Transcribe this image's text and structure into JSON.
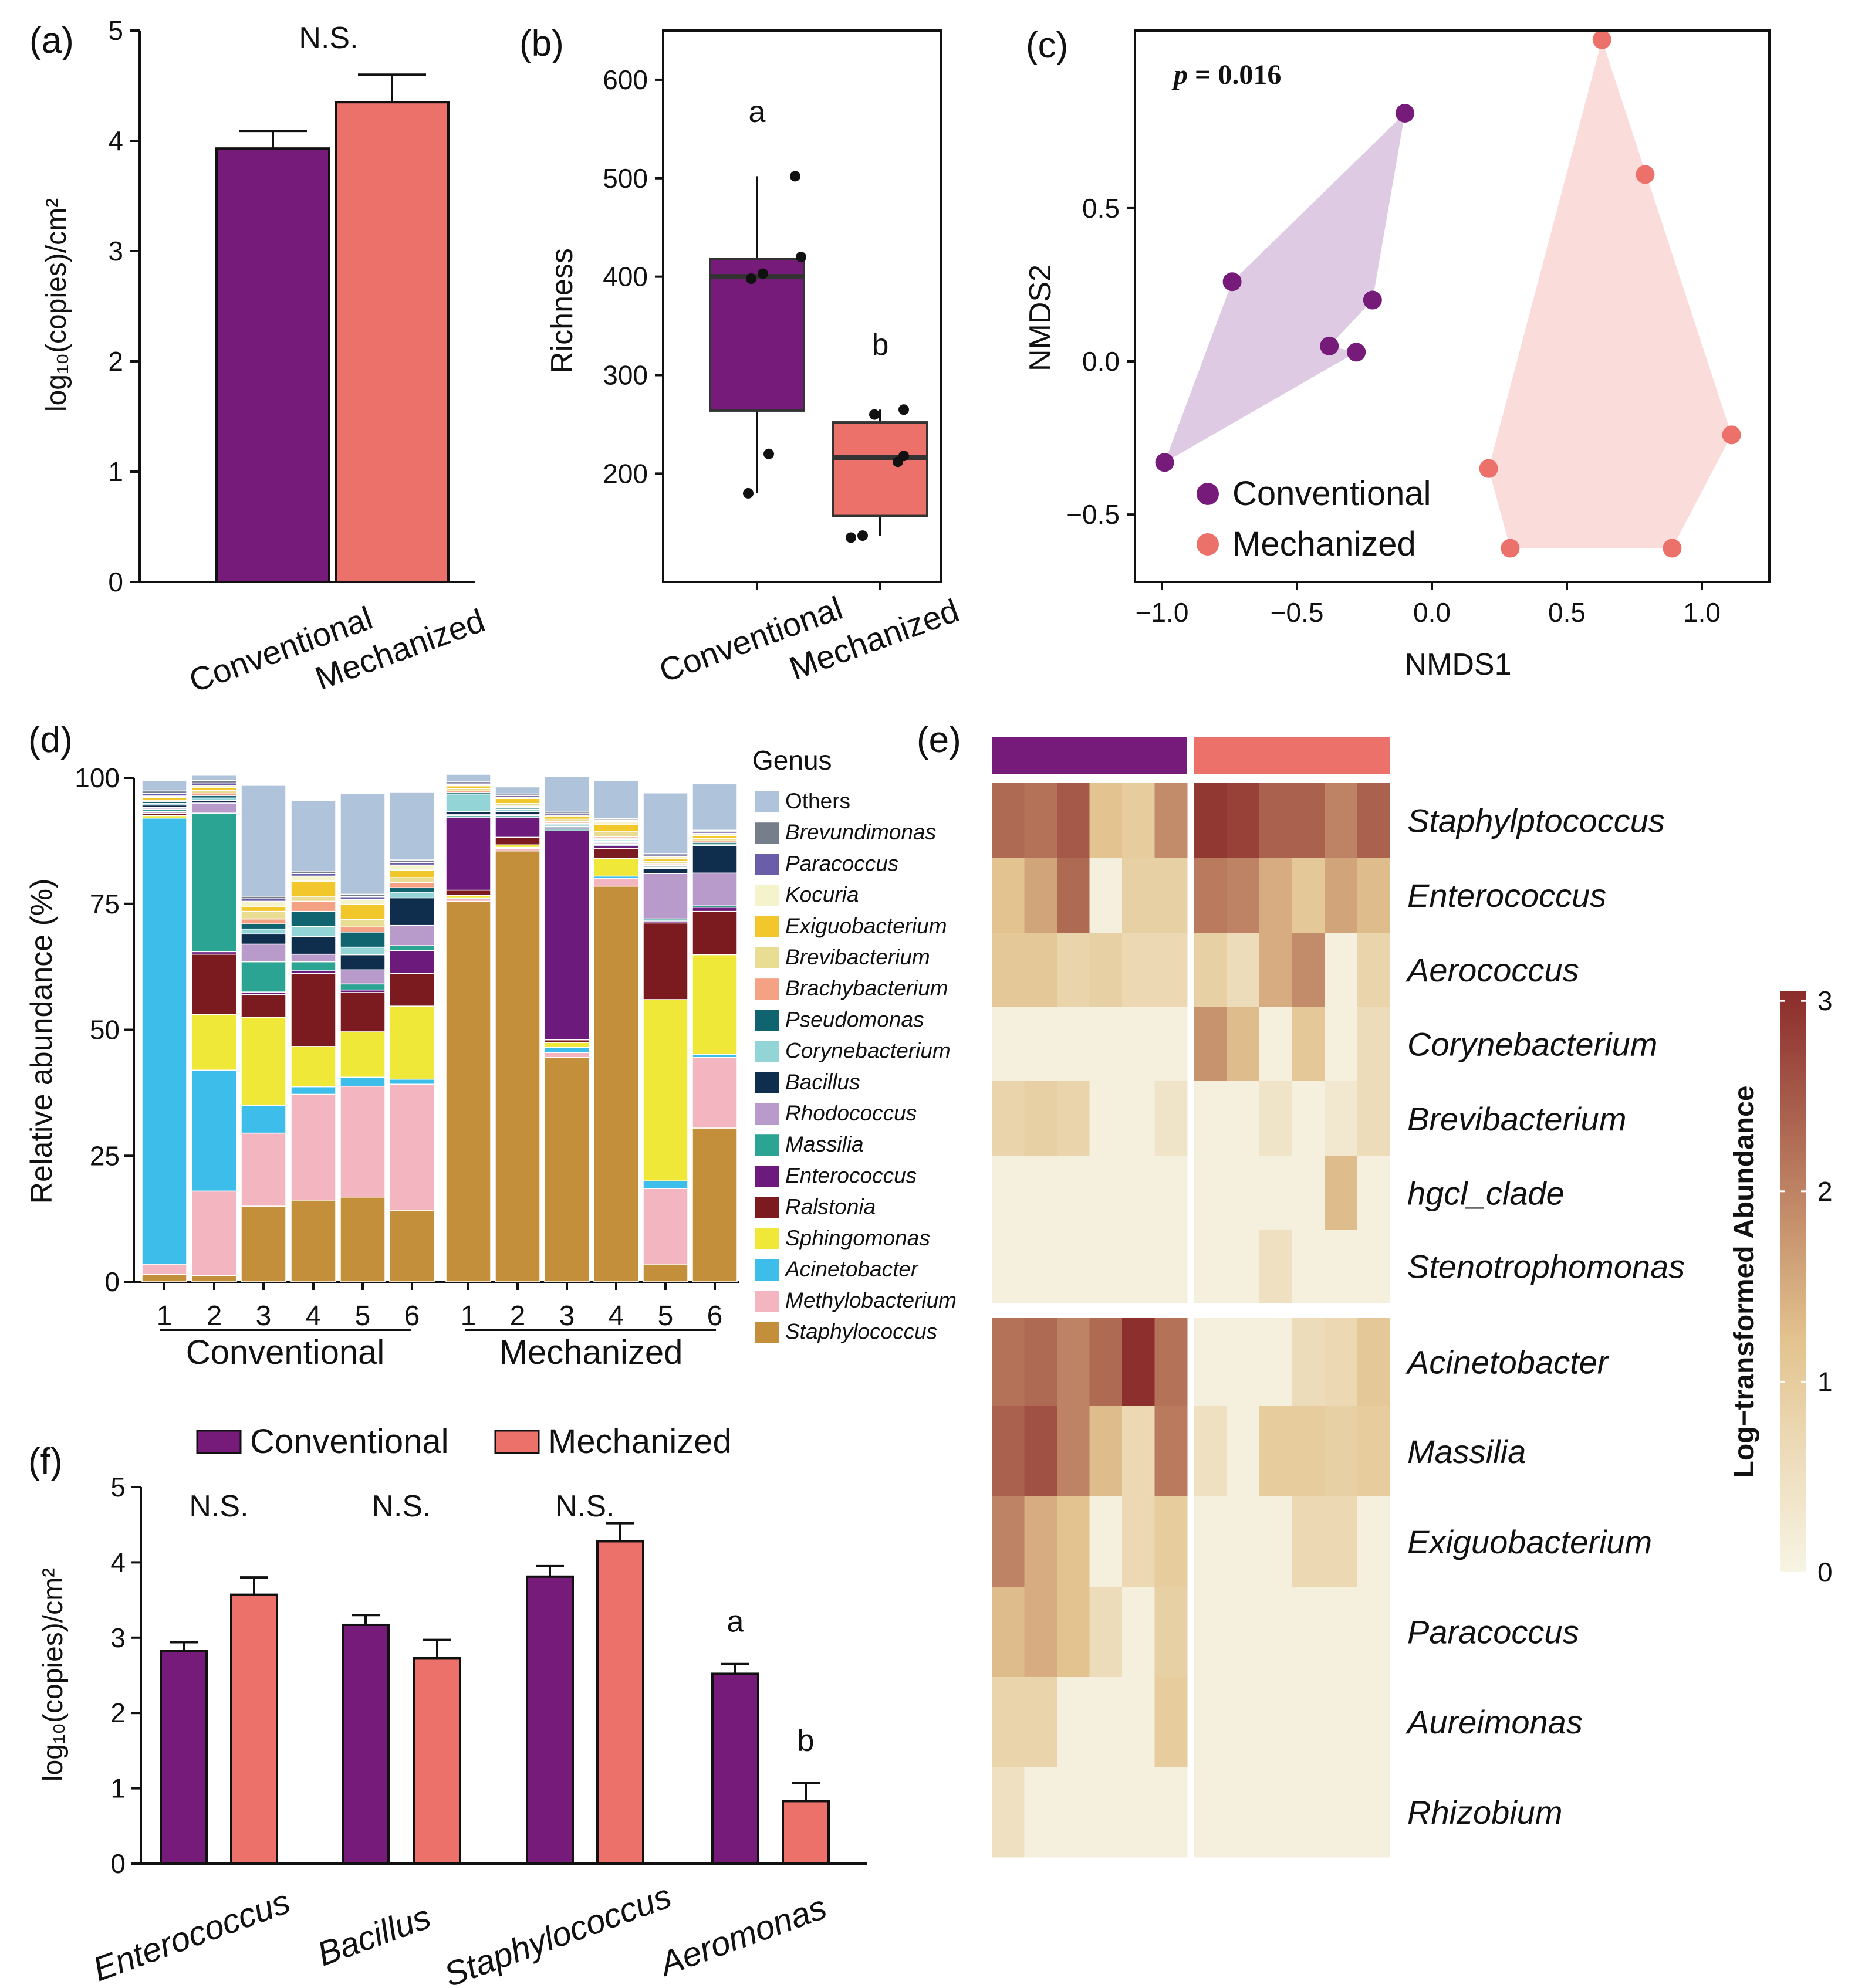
{
  "colors": {
    "conventional": "#761b7a",
    "mechanized": "#eb716a",
    "convHull": "#dcc7e1",
    "mechHull": "#fadbd9",
    "heatLow": "#f7f4e4",
    "heatMid": "#e3c38f",
    "heatHigh": "#8b2c2a"
  },
  "chart_data": [
    {
      "panel": "a",
      "panel_label": "(a)",
      "type": "bar",
      "title": "",
      "annotation": "N.S.",
      "categories": [
        "Conventional",
        "Mechanized"
      ],
      "values": [
        3.93,
        4.35
      ],
      "errors": [
        0.16,
        0.25
      ],
      "ylabel": "log₁₀(copies)/cm²",
      "ylim": [
        0,
        5
      ],
      "yticks": [
        "0",
        "1",
        "2",
        "3",
        "4",
        "5"
      ]
    },
    {
      "panel": "b",
      "panel_label": "(b)",
      "type": "box",
      "ylabel": "Richness",
      "ylim": [
        90,
        650
      ],
      "yticks": [
        "200",
        "300",
        "400",
        "500",
        "600"
      ],
      "categories": [
        "Conventional",
        "Mechanized"
      ],
      "letters": [
        "a",
        "b"
      ],
      "boxes": [
        {
          "name": "Conventional",
          "min": 180,
          "q1": 264,
          "median": 400,
          "q3": 418,
          "max": 502
        },
        {
          "name": "Mechanized",
          "min": 137,
          "q1": 157,
          "median": 216,
          "q3": 252,
          "max": 265
        }
      ],
      "points": [
        {
          "group": 0,
          "values": [
            180,
            220,
            398,
            403,
            420,
            502
          ]
        },
        {
          "group": 1,
          "values": [
            135,
            137,
            212,
            218,
            260,
            265
          ]
        }
      ]
    },
    {
      "panel": "c",
      "panel_label": "(c)",
      "type": "scatter",
      "title": "p = 0.016",
      "xlabel": "NMDS1",
      "ylabel": "NMDS2",
      "xlim": [
        -1.1,
        1.25
      ],
      "ylim": [
        -0.72,
        1.08
      ],
      "xticks": [
        "−1.0",
        "−0.5",
        "0.0",
        "0.5",
        "1.0"
      ],
      "yticks": [
        "−0.5",
        "0.0",
        "0.5"
      ],
      "series": [
        {
          "name": "Conventional",
          "x": [
            -0.1,
            -0.74,
            -0.22,
            -0.38,
            -0.28,
            -0.99
          ],
          "y": [
            0.81,
            0.26,
            0.2,
            0.05,
            0.03,
            -0.33
          ]
        },
        {
          "name": "Mechanized",
          "x": [
            0.63,
            0.79,
            1.11,
            0.21,
            0.29,
            0.89
          ],
          "y": [
            1.05,
            0.61,
            -0.24,
            -0.35,
            -0.61,
            -0.61
          ]
        }
      ],
      "legend": [
        "Conventional",
        "Mechanized"
      ]
    },
    {
      "panel": "d",
      "panel_label": "(d)",
      "type": "stacked-bar",
      "ylabel": "Relative abundance (%)",
      "ylim": [
        0,
        100
      ],
      "yticks": [
        "0",
        "25",
        "50",
        "75",
        "100"
      ],
      "groups": [
        "Conventional",
        "Mechanized"
      ],
      "samples": [
        "1",
        "2",
        "3",
        "4",
        "5",
        "6",
        "1",
        "2",
        "3",
        "4",
        "5",
        "6"
      ],
      "legend_title": "Genus",
      "taxa": [
        {
          "name": "Staphylococcus",
          "color": "#c48f3a",
          "values": [
            1.5,
            1.2,
            15,
            16.2,
            16.8,
            14.2,
            75.5,
            85.5,
            44.5,
            78.5,
            3.5,
            30.5
          ]
        },
        {
          "name": "Methylobacterium",
          "color": "#f3b6c0",
          "values": [
            2.0,
            16.8,
            14.5,
            21.0,
            22.0,
            25.0,
            0.5,
            0.5,
            1.0,
            1.5,
            15.0,
            14.0
          ]
        },
        {
          "name": "Acinetobacter",
          "color": "#3cbdea",
          "values": [
            88.5,
            24.0,
            5.5,
            1.5,
            1.8,
            1.0,
            0.2,
            0.2,
            1.0,
            0.5,
            1.5,
            0.6
          ]
        },
        {
          "name": "Sphingomonas",
          "color": "#f0e838",
          "values": [
            0.5,
            11.0,
            17.5,
            8.0,
            9.0,
            14.5,
            0.5,
            0.5,
            1.0,
            3.5,
            36.0,
            19.8
          ]
        },
        {
          "name": "Ralstonia",
          "color": "#7b1a1f",
          "values": [
            0.5,
            12.0,
            4.5,
            14.5,
            7.8,
            6.5,
            1.0,
            1.5,
            0.5,
            2.0,
            15.2,
            8.6
          ]
        },
        {
          "name": "Enterococcus",
          "color": "#6c1a7c",
          "values": [
            0.3,
            0.5,
            0.5,
            0.5,
            0.5,
            4.5,
            14.5,
            4.0,
            41.5,
            0.5,
            0.4,
            0.8
          ]
        },
        {
          "name": "Massilia",
          "color": "#2ca494",
          "values": [
            0.5,
            27.5,
            6.0,
            1.8,
            1.2,
            1.0,
            0.3,
            0.3,
            0.3,
            0.3,
            0.4,
            0.3
          ]
        },
        {
          "name": "Rhodococcus",
          "color": "#b89bcb",
          "values": [
            0.3,
            2.0,
            3.5,
            1.5,
            2.8,
            4.0,
            0.3,
            0.3,
            0.3,
            0.3,
            9.0,
            6.5
          ]
        },
        {
          "name": "Bacillus",
          "color": "#0f2d4d",
          "values": [
            0.5,
            0.5,
            2.0,
            3.5,
            3.0,
            5.5,
            0.5,
            0.5,
            0.3,
            0.3,
            1.0,
            5.5
          ]
        },
        {
          "name": "Corynebacterium",
          "color": "#93d4d7",
          "values": [
            0.3,
            0.5,
            1.0,
            2.0,
            1.5,
            1.0,
            3.5,
            0.5,
            0.3,
            0.3,
            0.3,
            0.3
          ]
        },
        {
          "name": "Pseudomonas",
          "color": "#106470",
          "values": [
            0.3,
            0.5,
            1.0,
            3.0,
            3.0,
            1.0,
            0.3,
            0.3,
            0.3,
            0.3,
            0.3,
            0.3
          ]
        },
        {
          "name": "Brachybacterium",
          "color": "#f4a184",
          "values": [
            0.2,
            0.5,
            1.0,
            2.0,
            1.0,
            1.0,
            0.3,
            0.3,
            0.3,
            0.3,
            0.3,
            0.3
          ]
        },
        {
          "name": "Brevibacterium",
          "color": "#e9dd93",
          "values": [
            0.2,
            0.5,
            1.5,
            1.0,
            1.5,
            1.0,
            0.5,
            0.5,
            0.5,
            1.0,
            0.5,
            0.5
          ]
        },
        {
          "name": "Exiguobacterium",
          "color": "#f2c72b",
          "values": [
            0.5,
            0.5,
            1.0,
            3.0,
            3.0,
            1.5,
            0.5,
            1.0,
            0.5,
            1.5,
            0.5,
            0.5
          ]
        },
        {
          "name": "Kocuria",
          "color": "#f4f3cc",
          "values": [
            0.3,
            0.5,
            1.0,
            1.0,
            1.0,
            1.0,
            0.3,
            0.3,
            0.3,
            0.5,
            0.5,
            0.5
          ]
        },
        {
          "name": "Paracoccus",
          "color": "#6a5ea8",
          "values": [
            0.5,
            0.5,
            0.5,
            0.5,
            0.5,
            0.5,
            0.3,
            0.3,
            0.3,
            0.3,
            0.3,
            0.3
          ]
        },
        {
          "name": "Brevundimonas",
          "color": "#777e8b",
          "values": [
            0.5,
            0.5,
            0.5,
            0.5,
            0.5,
            0.5,
            0.3,
            0.3,
            0.3,
            0.3,
            0.3,
            0.3
          ]
        },
        {
          "name": "Others",
          "color": "#afc3db",
          "values": [
            2.0,
            1.0,
            22.0,
            14.0,
            20.0,
            13.5,
            1.4,
            1.4,
            7.0,
            7.5,
            12.0,
            9.2
          ]
        }
      ],
      "legend_order": [
        "Others",
        "Brevundimonas",
        "Paracoccus",
        "Kocuria",
        "Exiguobacterium",
        "Brevibacterium",
        "Brachybacterium",
        "Pseudomonas",
        "Corynebacterium",
        "Bacillus",
        "Rhodococcus",
        "Massilia",
        "Enterococcus",
        "Ralstonia",
        "Sphingomonas",
        "Acinetobacter",
        "Methylobacterium",
        "Staphylococcus"
      ]
    },
    {
      "panel": "e",
      "panel_label": "(e)",
      "type": "heatmap",
      "colorbar_label": "Log−transformed Abundance",
      "colorbar_range": [
        0,
        3.05
      ],
      "colorbar_ticks": [
        "0",
        "1",
        "2",
        "3"
      ],
      "groups": [
        "Conventional",
        "Mechanized"
      ],
      "rows": [
        "Staphylptococcus",
        "Enterococcus",
        "Aerococcus",
        "Corynebacterium",
        "Brevibacterium",
        "hgcl_clade",
        "Stenotrophomonas",
        "Acinetobacter",
        "Massilia",
        "Exiguobacterium",
        "Paracoccus",
        "Aureimonas",
        "Rhizobium"
      ],
      "cluster_rows": [
        7,
        6
      ],
      "values": [
        [
          2.3,
          2.2,
          2.5,
          1.2,
          1.0,
          1.9,
          2.9,
          2.8,
          2.4,
          2.4,
          2.0,
          2.4
        ],
        [
          1.2,
          1.6,
          2.3,
          0.1,
          0.9,
          0.9,
          2.1,
          2.0,
          1.5,
          1.1,
          1.6,
          1.3
        ],
        [
          1.1,
          1.1,
          0.8,
          0.9,
          0.7,
          0.7,
          0.9,
          0.6,
          1.5,
          1.9,
          0.1,
          0.8
        ],
        [
          0.1,
          0.1,
          0.1,
          0.1,
          0.1,
          0.1,
          1.8,
          1.3,
          0.1,
          1.1,
          0.1,
          0.6
        ],
        [
          0.8,
          0.9,
          0.8,
          0.1,
          0.1,
          0.4,
          0.1,
          0.1,
          0.4,
          0.1,
          0.3,
          0.6
        ],
        [
          0.1,
          0.1,
          0.1,
          0.1,
          0.1,
          0.1,
          0.1,
          0.1,
          0.1,
          0.1,
          1.3,
          0.1
        ],
        [
          0.1,
          0.1,
          0.1,
          0.1,
          0.1,
          0.1,
          0.1,
          0.1,
          0.5,
          0.1,
          0.1,
          0.1
        ],
        [
          2.2,
          2.3,
          2.0,
          2.3,
          3.0,
          2.2,
          0.1,
          0.1,
          0.1,
          0.6,
          0.7,
          1.1
        ],
        [
          2.4,
          2.6,
          2.0,
          1.3,
          0.7,
          2.1,
          0.5,
          0.1,
          1.0,
          1.0,
          0.9,
          1.0
        ],
        [
          2.0,
          1.5,
          1.2,
          0.1,
          0.7,
          1.0,
          0.1,
          0.1,
          0.1,
          0.7,
          0.7,
          0.1
        ],
        [
          1.3,
          1.5,
          1.2,
          0.6,
          0.1,
          0.9,
          0.1,
          0.1,
          0.1,
          0.1,
          0.1,
          0.1
        ],
        [
          0.8,
          0.8,
          0.1,
          0.1,
          0.1,
          1.0,
          0.1,
          0.1,
          0.1,
          0.1,
          0.1,
          0.1
        ],
        [
          0.5,
          0.1,
          0.1,
          0.1,
          0.1,
          0.1,
          0.1,
          0.1,
          0.1,
          0.1,
          0.1,
          0.1
        ]
      ]
    },
    {
      "panel": "f",
      "panel_label": "(f)",
      "type": "bar",
      "ylabel": "log₁₀(copies)/cm²",
      "ylim": [
        0,
        5
      ],
      "yticks": [
        "0",
        "1",
        "2",
        "3",
        "4",
        "5"
      ],
      "categories": [
        "Enterococcus",
        "Bacillus",
        "Staphylococcus",
        "Aeromonas"
      ],
      "annotations": [
        "N.S.",
        "N.S.",
        "N.S.",
        ""
      ],
      "series": [
        {
          "name": "Conventional",
          "values": [
            2.82,
            3.17,
            3.81,
            2.52
          ],
          "errors": [
            0.12,
            0.13,
            0.14,
            0.13
          ],
          "letters": [
            "",
            "",
            "",
            "a"
          ]
        },
        {
          "name": "Mechanized",
          "values": [
            3.57,
            2.73,
            4.28,
            0.83
          ],
          "errors": [
            0.23,
            0.24,
            0.24,
            0.24
          ],
          "letters": [
            "",
            "",
            "",
            "b"
          ]
        }
      ],
      "legend": [
        "Conventional",
        "Mechanized"
      ]
    }
  ]
}
